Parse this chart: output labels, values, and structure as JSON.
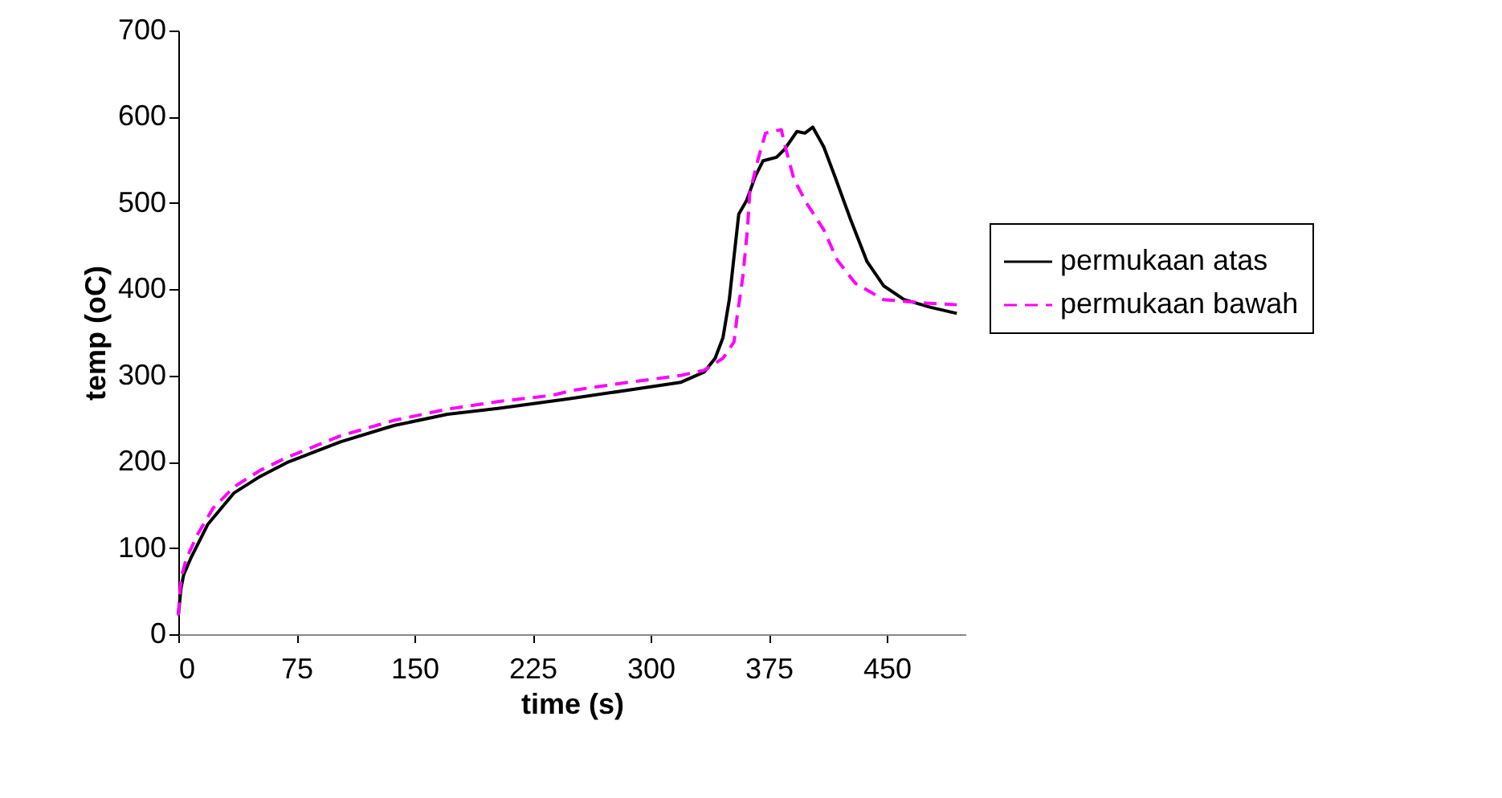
{
  "chart_data": {
    "type": "line",
    "xlabel": "time (s)",
    "ylabel": "temp (oC)",
    "xlim": [
      0,
      500
    ],
    "xticks": [
      0,
      75,
      150,
      225,
      300,
      375,
      450
    ],
    "ylim": [
      0,
      700
    ],
    "yticks": [
      0,
      100,
      200,
      300,
      400,
      500,
      600,
      700
    ],
    "grid": false,
    "legend": "right",
    "marker": "none",
    "series": [
      {
        "name": "permukaan atas",
        "color": "#000000",
        "line_style": "solid",
        "x": [
          0,
          1.7,
          3.4,
          8.4,
          18.6,
          35.5,
          52,
          69,
          103,
          137,
          171,
          204,
          248,
          285.6,
          319,
          334,
          341,
          346,
          350,
          353,
          356,
          361,
          366.5,
          371.5,
          380,
          385,
          393,
          398,
          403,
          410,
          417,
          427,
          437.5,
          448,
          461,
          478,
          494.5
        ],
        "values": [
          22,
          53,
          69,
          90,
          127,
          164,
          183,
          199,
          223,
          242,
          255,
          262,
          273,
          283,
          292,
          304,
          320,
          344,
          388,
          438,
          487,
          503,
          531,
          549,
          553,
          562,
          583,
          581,
          588,
          565,
          531,
          481,
          432,
          404,
          388,
          379,
          372
        ]
      },
      {
        "name": "permukaan bawah",
        "color": "#ff00ff",
        "line_style": "dashed",
        "x": [
          0,
          1.7,
          5,
          12,
          22,
          35.5,
          52,
          69,
          103,
          137,
          171,
          204,
          237.5,
          251,
          285.6,
          319,
          334,
          346,
          353,
          355,
          358.5,
          361.5,
          363,
          368,
          373,
          383,
          386,
          391,
          399,
          410,
          418.5,
          430,
          448,
          475,
          494.5
        ],
        "values": [
          22,
          65,
          87,
          115,
          146,
          171,
          190,
          205,
          230,
          248,
          261,
          270,
          277,
          283,
          292,
          300,
          306,
          320,
          339,
          369,
          413,
          469,
          512,
          549,
          581,
          585,
          562,
          528,
          500,
          469,
          434,
          407,
          388,
          384,
          382
        ]
      }
    ]
  }
}
